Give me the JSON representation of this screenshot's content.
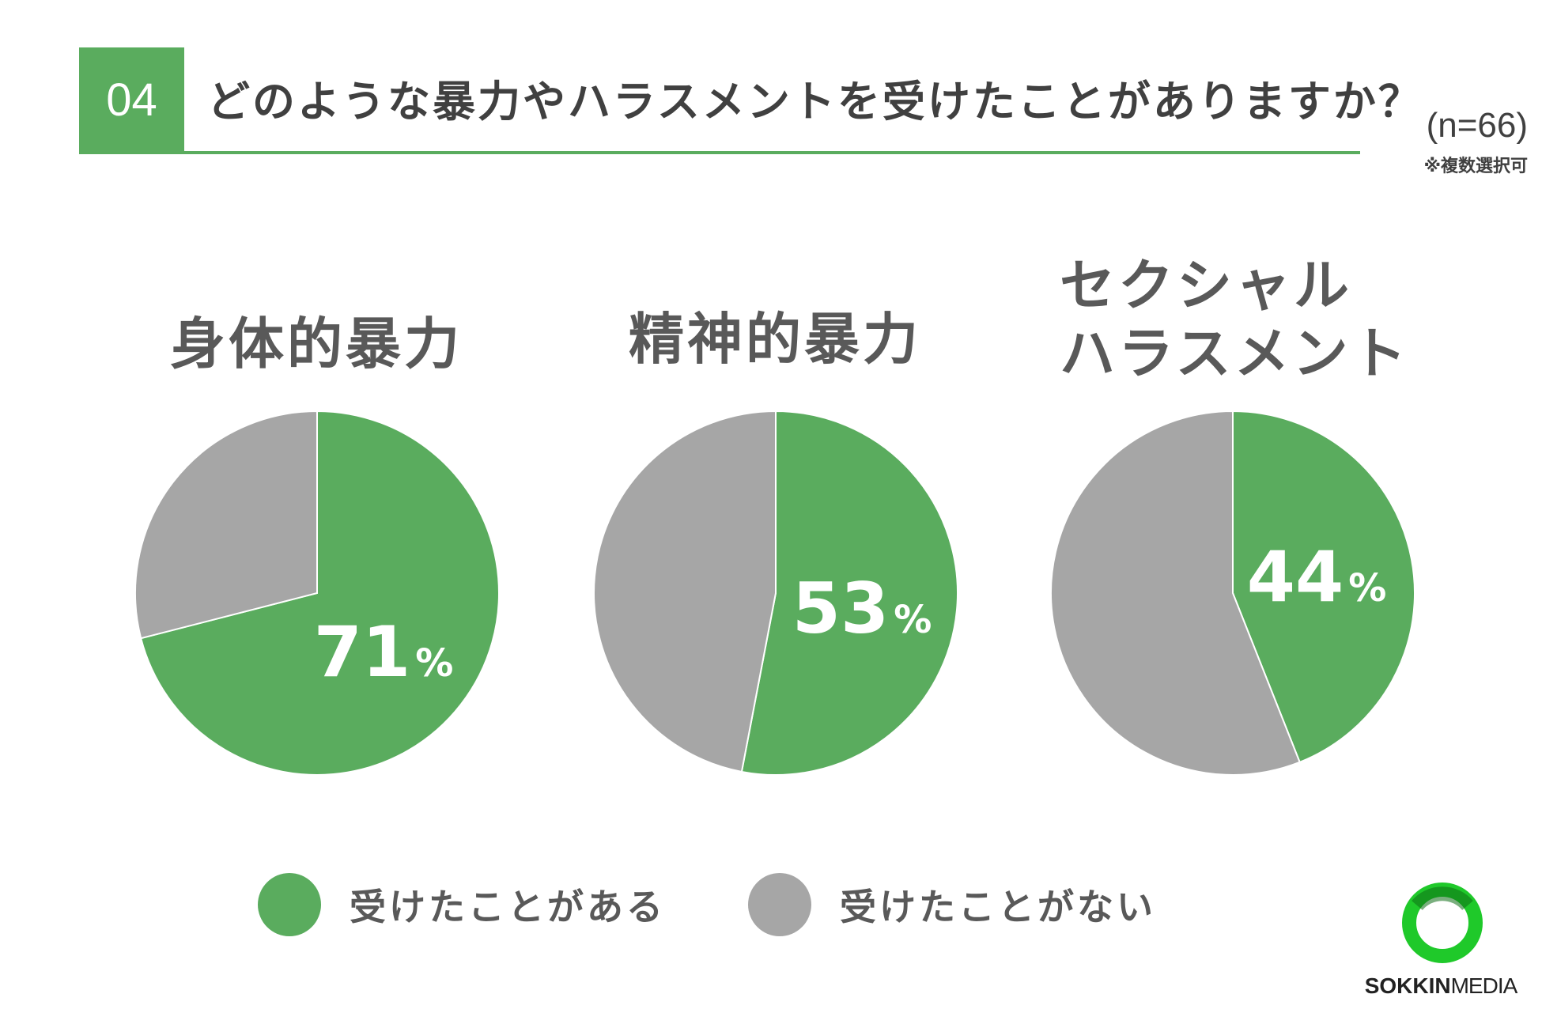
{
  "header": {
    "number": "04",
    "question": "どのような暴力やハラスメントを受けたことがありますか？",
    "sample_size": "(n=66)",
    "note": "※複数選択可"
  },
  "chart_data": [
    {
      "type": "pie",
      "title": "身体的暴力",
      "title_lines": [
        "身体的暴力"
      ],
      "slices": [
        {
          "label": "受けたことがある",
          "value": 71,
          "color": "#5aac5e"
        },
        {
          "label": "受けたことがない",
          "value": 29,
          "color": "#a6a6a6"
        }
      ],
      "data_label": {
        "value": "71",
        "unit": "%"
      }
    },
    {
      "type": "pie",
      "title": "精神的暴力",
      "title_lines": [
        "精神的暴力"
      ],
      "slices": [
        {
          "label": "受けたことがある",
          "value": 53,
          "color": "#5aac5e"
        },
        {
          "label": "受けたことがない",
          "value": 47,
          "color": "#a6a6a6"
        }
      ],
      "data_label": {
        "value": "53",
        "unit": "%"
      }
    },
    {
      "type": "pie",
      "title": "セクシャル ハラスメント",
      "title_lines": [
        "セクシャル",
        "ハラスメント"
      ],
      "slices": [
        {
          "label": "受けたことがある",
          "value": 44,
          "color": "#5aac5e"
        },
        {
          "label": "受けたことがない",
          "value": 56,
          "color": "#a6a6a6"
        }
      ],
      "data_label": {
        "value": "44",
        "unit": "%"
      }
    }
  ],
  "legend": [
    {
      "label": "受けたことがある",
      "color": "#5aac5e"
    },
    {
      "label": "受けたことがない",
      "color": "#a6a6a6"
    }
  ],
  "brand": {
    "name_bold": "SOKKIN",
    "name_regular": "MEDIA",
    "ring_color": "#1fc92a"
  }
}
